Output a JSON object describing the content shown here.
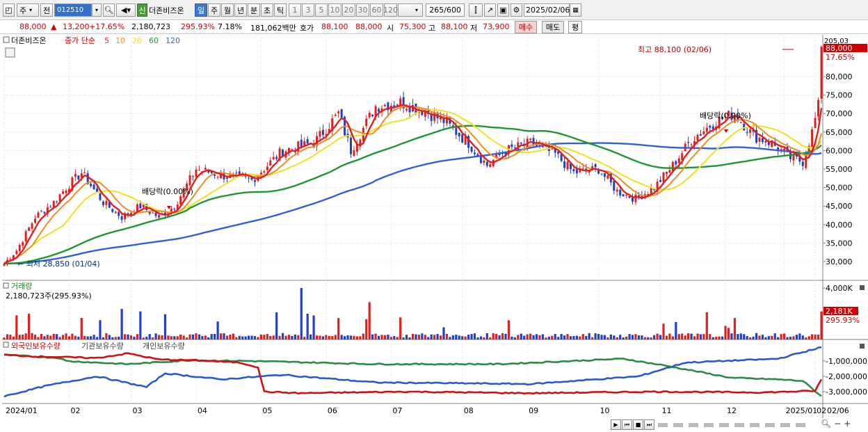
{
  "toolbar": {
    "type": "주",
    "prev": "전",
    "code": "012510",
    "stock_name": "더존비즈온",
    "new_badge": "신",
    "periods": [
      "일",
      "주",
      "월",
      "년",
      "분",
      "초",
      "틱"
    ],
    "active_period": "일",
    "intervals": [
      "1",
      "3",
      "5",
      "10",
      "20",
      "30",
      "60",
      "120"
    ],
    "count": "265",
    "count_max": "/600",
    "date": "2025/02/06"
  },
  "quote": {
    "price": "88,000",
    "arrow": "▲",
    "change": "13,200",
    "change_pct": "+17.65%",
    "volume": "2,180,723",
    "volume_ratio": "295.93%",
    "turnover": "7.18%",
    "amount": "181,062백만",
    "bid_label": "호가",
    "bid": "88,100",
    "ask": "88,000",
    "open_label": "시",
    "open": "75,300",
    "high_label": "고",
    "high": "88,100",
    "low_label": "저",
    "low": "73,900",
    "buy_label": "매수",
    "sell_label": "매도",
    "avg_label": "평"
  },
  "price_panel": {
    "stock_label": "더존비즈온",
    "ma_label": "종가 단순",
    "ma_periods": [
      "5",
      "10",
      "20",
      "60",
      "120"
    ],
    "axis": [
      "80,000",
      "75,000",
      "70,000",
      "65,000",
      "60,000",
      "55,000",
      "50,000",
      "45,000",
      "40,000",
      "35,000",
      "30,000"
    ],
    "axis_top": "205,03",
    "current_price": "88,000",
    "current_pct": "17.65%",
    "high_note": "최고 88,100 (02/06)",
    "low_note": "최저 28,850 (01/04)",
    "dividend": "배당락(0.00%)"
  },
  "volume_panel": {
    "title": "거래량",
    "value": "2,180,723주(295.93%)",
    "axis_top": "4,000K",
    "current": "2,181K",
    "current_pct": "295.93%"
  },
  "holder_panel": {
    "s1": "외국인보유수량",
    "s2": "기관보유수량",
    "s3": "개인보유수량",
    "axis": [
      "-1,000,000",
      "-2,000,000",
      "-3,000,000"
    ]
  },
  "xaxis": [
    "2024/01",
    "02",
    "03",
    "04",
    "05",
    "06",
    "07",
    "08",
    "09",
    "10",
    "11",
    "12",
    "2025/01",
    "02"
  ],
  "xaxis_right": "02/06",
  "colors": {
    "ma5": "#e02020",
    "ma10": "#f08c1e",
    "ma20": "#f0e020",
    "ma60": "#1e9632",
    "ma120": "#3060d8",
    "up": "#e02020",
    "down": "#2040c8"
  }
}
